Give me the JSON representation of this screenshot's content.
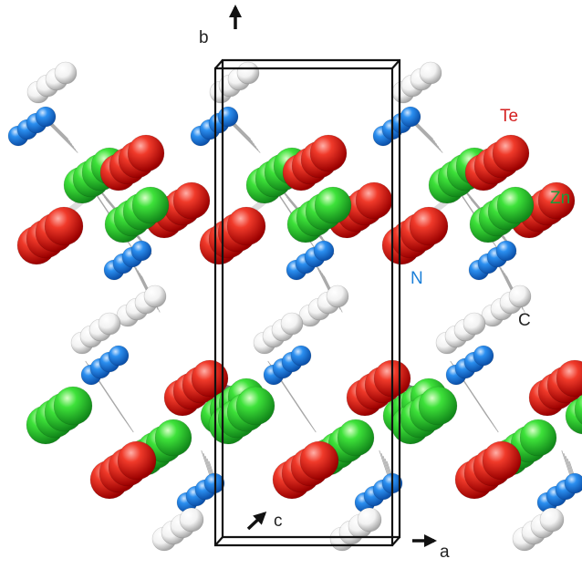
{
  "labels": {
    "b_axis": "b",
    "a_axis": "a",
    "c_axis": "c",
    "te": "Te",
    "zn": "Zn",
    "n": "N",
    "c_atom": "C"
  },
  "colors": {
    "te": "#e01414",
    "zn": "#22c81e",
    "n": "#1a7fe0",
    "c_atom": "#f4f4f4",
    "cell": "#111111",
    "bond_gray": "#6d6d6d",
    "stack_line": "#9a9a9a",
    "label_te": "#d42020",
    "label_zn": "#1a9a3a",
    "label_n": "#1a7fd8",
    "label_c": "#222222"
  },
  "atom_types": [
    "Te",
    "Zn",
    "N",
    "C"
  ]
}
